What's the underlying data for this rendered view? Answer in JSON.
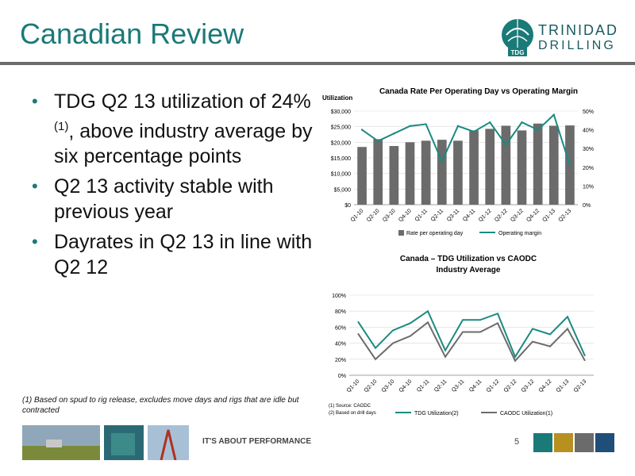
{
  "title": "Canadian Review",
  "logo": {
    "line1": "TRINIDAD",
    "line2": "DRILLING",
    "badge": "TDG",
    "color_teal": "#1a7a78"
  },
  "bullets": [
    {
      "text_a": "TDG Q2 13 utilization of 24%",
      "sup": "(1)",
      "text_b": ", above industry average by six percentage points"
    },
    {
      "text_a": "Q2 13 activity stable with previous year"
    },
    {
      "text_a": "Dayrates in Q2 13 in line with Q2 12"
    }
  ],
  "footnote": "(1) Based on spud to rig release, excludes move days and rigs that are idle but contracted",
  "footer": {
    "tagline": "IT'S ABOUT PERFORMANCE",
    "page": "5",
    "squares": [
      "#1a7a78",
      "#b8901f",
      "#6b6b6b",
      "#1f4e79"
    ]
  },
  "charts": [
    {
      "type": "bar",
      "title": "Canada Rate Per Operating Day vs Operating  Margin",
      "ylabel": "Utilization",
      "categories": [
        "Q1-10",
        "Q2-10",
        "Q3-10",
        "Q4-10",
        "Q1-11",
        "Q2-11",
        "Q3-11",
        "Q4-11",
        "Q1-12",
        "Q2-12",
        "Q3-12",
        "Q4-12",
        "Q1-13",
        "Q2-13"
      ],
      "y_ticks": [
        "$0",
        "$5,000",
        "$10,000",
        "$15,000",
        "$20,000",
        "$25,000",
        "$30,000"
      ],
      "y2_ticks": [
        "0%",
        "10%",
        "20%",
        "30%",
        "40%",
        "50%"
      ],
      "ylim": [
        0,
        30000
      ],
      "y2lim": [
        0,
        50
      ],
      "series": [
        {
          "name": "Rate per operating day",
          "type": "bar",
          "color": "#6b6b6b",
          "values": [
            18500,
            21000,
            18800,
            20000,
            20500,
            20800,
            20500,
            23800,
            24300,
            25300,
            23800,
            26000,
            25300,
            25400
          ]
        },
        {
          "name": "Operating margin",
          "type": "line",
          "color": "#1a8a80",
          "axis": "right",
          "values": [
            40,
            34,
            38,
            42,
            43,
            23,
            42,
            39,
            44,
            32,
            44,
            40,
            48,
            21
          ]
        }
      ]
    },
    {
      "type": "line",
      "title_line1": "Canada – TDG Utilization vs CAODC",
      "title_line2": "Industry Average",
      "categories": [
        "Q1-10",
        "Q2-10",
        "Q3-10",
        "Q4-10",
        "Q1-11",
        "Q2-11",
        "Q3-11",
        "Q4-11",
        "Q1-12",
        "Q2-12",
        "Q3-12",
        "Q4-12",
        "Q1-13",
        "Q2-13"
      ],
      "y_ticks": [
        "0%",
        "20%",
        "40%",
        "60%",
        "80%",
        "100%"
      ],
      "ylim": [
        0,
        100
      ],
      "notes": [
        "(1) Source: CAODC",
        "(2) Based on drill days"
      ],
      "series": [
        {
          "name": "TDG Utilization(2)",
          "color": "#1a8a80",
          "values": [
            67,
            34,
            56,
            65,
            80,
            31,
            69,
            69,
            77,
            23,
            58,
            51,
            73,
            24
          ]
        },
        {
          "name": "CAODC Utilization(1)",
          "color": "#6b6b6b",
          "values": [
            52,
            20,
            40,
            49,
            66,
            23,
            54,
            54,
            65,
            18,
            42,
            36,
            58,
            18
          ]
        }
      ]
    }
  ]
}
